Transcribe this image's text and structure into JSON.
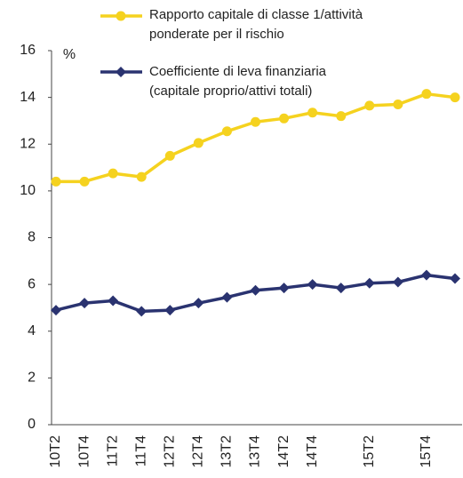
{
  "chart_data": {
    "type": "line",
    "unit_label": "%",
    "categories": [
      "10T2",
      "10T4",
      "11T2",
      "11T4",
      "12T2",
      "12T4",
      "13T2",
      "13T4",
      "14T2",
      "14T4",
      null,
      "15T2",
      null,
      "15T4",
      null
    ],
    "series": [
      {
        "name": "Rapporto capitale di classe 1/attività ponderate per il rischio",
        "color": "#f5d21f",
        "marker": "circle",
        "values": [
          10.4,
          10.4,
          10.75,
          10.6,
          11.5,
          12.05,
          12.55,
          12.95,
          13.1,
          13.35,
          13.2,
          13.65,
          13.7,
          14.15,
          14.0
        ]
      },
      {
        "name": "Coefficiente di leva finanziaria (capitale proprio/attivi totali)",
        "color": "#2a3370",
        "marker": "diamond",
        "values": [
          4.9,
          5.2,
          5.3,
          4.85,
          4.9,
          5.2,
          5.45,
          5.75,
          5.85,
          6.0,
          5.85,
          6.05,
          6.1,
          6.4,
          6.25
        ]
      }
    ],
    "ylim": [
      0,
      16
    ],
    "yticks": [
      0,
      2,
      4,
      6,
      8,
      10,
      12,
      14,
      16
    ],
    "grid": false
  }
}
